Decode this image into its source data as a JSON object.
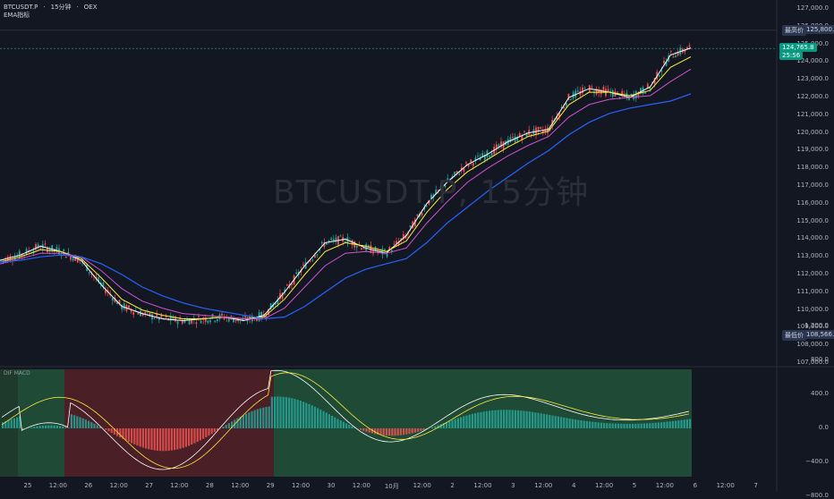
{
  "header": {
    "symbol": "BTCUSDT.P",
    "interval": "15分钟",
    "exchange": "OEX",
    "indicator": "EMA指标"
  },
  "watermark": "BTCUSDT.P, 15分钟",
  "price_axis": {
    "ticks": [
      "127,000.0",
      "126,000.0",
      "125,000.0",
      "124,000.0",
      "123,000.0",
      "122,000.0",
      "121,000.0",
      "120,000.0",
      "119,000.0",
      "118,000.0",
      "117,000.0",
      "116,000.0",
      "115,000.0",
      "114,000.0",
      "113,000.0",
      "112,000.0",
      "111,000.0",
      "110,000.0",
      "109,000.0",
      "108,000.0",
      "107,000.0"
    ],
    "high_label": "最高价",
    "high_value": "125,800.0",
    "low_label": "最低价",
    "low_value": "108,566.1",
    "last_price": "124,765.8",
    "countdown": "25:56"
  },
  "macd_pane": {
    "title": "DIF MACD",
    "ticks": [
      "1,200.0",
      "800.0",
      "400.0",
      "0.0",
      "−400.0",
      "−800.0"
    ]
  },
  "time_axis": {
    "labels": [
      "25",
      "12:00",
      "26",
      "12:00",
      "27",
      "12:00",
      "28",
      "12:00",
      "29",
      "12:00",
      "30",
      "12:00",
      "10月",
      "12:00",
      "2",
      "12:00",
      "3",
      "12:00",
      "4",
      "12:00",
      "5",
      "12:00",
      "6",
      "12:00",
      "7"
    ]
  },
  "colors": {
    "background": "#131722",
    "up": "#26a69a",
    "down": "#ef5350",
    "ema_white": "#ffffff",
    "ema_yellow": "#ffeb3b",
    "ema_purple": "#d052d0",
    "ema_blue": "#2962ff"
  },
  "chart_data": {
    "type": "line",
    "price_range": [
      107000,
      127000
    ],
    "series": [
      {
        "values": [
          112800,
          113100,
          113600,
          113300,
          112800,
          111400,
          110200,
          109800,
          109500,
          109400,
          109500,
          109600,
          109400,
          109700,
          111000,
          112500,
          113800,
          114000,
          113500,
          113200,
          114200,
          116000,
          117200,
          118200,
          118800,
          119500,
          120000,
          120200,
          122000,
          122500,
          122300,
          122000,
          122600,
          124400,
          124800
        ]
      },
      {
        "values": [
          112700,
          113000,
          113400,
          113300,
          112900,
          111800,
          110600,
          110000,
          109700,
          109500,
          109500,
          109600,
          109500,
          109600,
          110600,
          112000,
          113300,
          113800,
          113600,
          113300,
          113900,
          115500,
          116800,
          117800,
          118500,
          119200,
          119800,
          120100,
          121600,
          122300,
          122300,
          122100,
          122400,
          123700,
          124300
        ]
      },
      {
        "values": [
          112600,
          112900,
          113200,
          113200,
          113000,
          112200,
          111200,
          110500,
          110100,
          109800,
          109700,
          109600,
          109500,
          109500,
          110100,
          111300,
          112500,
          113200,
          113300,
          113200,
          113500,
          114900,
          116100,
          117200,
          118000,
          118700,
          119300,
          119800,
          120900,
          121600,
          121900,
          122000,
          122100,
          122900,
          123600
        ]
      },
      {
        "values": [
          112700,
          112800,
          113000,
          113100,
          113000,
          112600,
          112000,
          111300,
          110800,
          110400,
          110100,
          109900,
          109700,
          109500,
          109600,
          110200,
          111000,
          111800,
          112300,
          112600,
          112900,
          113800,
          114900,
          115800,
          116700,
          117500,
          118300,
          119000,
          119900,
          120600,
          121100,
          121400,
          121600,
          121800,
          122200
        ]
      }
    ]
  }
}
